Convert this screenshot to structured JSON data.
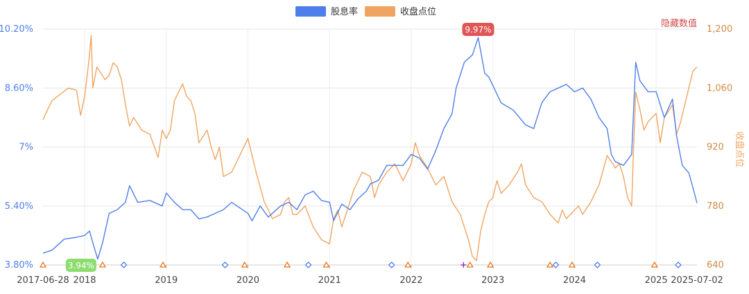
{
  "chart_data": {
    "type": "line",
    "legend": {
      "placement": "top-center",
      "items": [
        {
          "name": "股息率",
          "color": "#4e7ee9"
        },
        {
          "name": "收盘点位",
          "color": "#f0a461"
        }
      ]
    },
    "y_left": {
      "ticks": [
        "3.80%",
        "5.40%",
        "7%",
        "8.60%",
        "10.20%"
      ],
      "range": [
        3.8,
        10.2
      ],
      "color": "#4e7ee9"
    },
    "y_right": {
      "ticks": [
        "640",
        "780",
        "920",
        "1,060",
        "1,200"
      ],
      "range": [
        640,
        1200
      ],
      "color": "#f0a461",
      "label": "收盘点位",
      "hidden_label": "隐藏数值",
      "hidden_label_color": "#d24b4b"
    },
    "x_axis": {
      "start_label": "2017-06-28",
      "end_label": "2025-07-02",
      "year_labels": [
        "2018",
        "2019",
        "2020",
        "2021",
        "2022",
        "2023",
        "2024",
        "2025"
      ]
    },
    "grid": true,
    "annotations": {
      "max_label": "9.97%",
      "max_color": "#e05555",
      "min_label": "3.94%",
      "min_color": "#8ddc6e"
    },
    "series": [
      {
        "name": "股息率",
        "color": "#4e7ee9",
        "points": [
          [
            2017.49,
            4.12
          ],
          [
            2017.6,
            4.2
          ],
          [
            2017.75,
            4.5
          ],
          [
            2017.9,
            4.55
          ],
          [
            2018.0,
            4.6
          ],
          [
            2018.06,
            4.72
          ],
          [
            2018.1,
            4.4
          ],
          [
            2018.16,
            3.96
          ],
          [
            2018.22,
            4.4
          ],
          [
            2018.3,
            5.2
          ],
          [
            2018.4,
            5.3
          ],
          [
            2018.5,
            5.5
          ],
          [
            2018.55,
            5.95
          ],
          [
            2018.65,
            5.5
          ],
          [
            2018.8,
            5.55
          ],
          [
            2018.95,
            5.4
          ],
          [
            2019.0,
            5.75
          ],
          [
            2019.1,
            5.5
          ],
          [
            2019.2,
            5.3
          ],
          [
            2019.3,
            5.3
          ],
          [
            2019.4,
            5.05
          ],
          [
            2019.5,
            5.1
          ],
          [
            2019.6,
            5.2
          ],
          [
            2019.7,
            5.3
          ],
          [
            2019.8,
            5.5
          ],
          [
            2019.9,
            5.35
          ],
          [
            2020.0,
            5.2
          ],
          [
            2020.05,
            5.0
          ],
          [
            2020.15,
            5.4
          ],
          [
            2020.25,
            5.1
          ],
          [
            2020.4,
            5.4
          ],
          [
            2020.5,
            5.5
          ],
          [
            2020.6,
            5.3
          ],
          [
            2020.7,
            5.7
          ],
          [
            2020.8,
            5.8
          ],
          [
            2020.9,
            5.55
          ],
          [
            2021.0,
            5.5
          ],
          [
            2021.05,
            5.0
          ],
          [
            2021.15,
            5.45
          ],
          [
            2021.25,
            5.3
          ],
          [
            2021.35,
            5.6
          ],
          [
            2021.45,
            5.8
          ],
          [
            2021.5,
            6.0
          ],
          [
            2021.6,
            6.1
          ],
          [
            2021.7,
            6.5
          ],
          [
            2021.8,
            6.5
          ],
          [
            2021.9,
            6.5
          ],
          [
            2022.0,
            6.8
          ],
          [
            2022.1,
            6.7
          ],
          [
            2022.2,
            6.4
          ],
          [
            2022.3,
            6.9
          ],
          [
            2022.4,
            7.5
          ],
          [
            2022.5,
            7.9
          ],
          [
            2022.55,
            8.6
          ],
          [
            2022.65,
            9.3
          ],
          [
            2022.75,
            9.5
          ],
          [
            2022.82,
            9.97
          ],
          [
            2022.9,
            9.0
          ],
          [
            2022.95,
            8.9
          ],
          [
            2023.1,
            8.2
          ],
          [
            2023.25,
            8.0
          ],
          [
            2023.4,
            7.6
          ],
          [
            2023.5,
            7.5
          ],
          [
            2023.6,
            8.2
          ],
          [
            2023.7,
            8.5
          ],
          [
            2023.8,
            8.6
          ],
          [
            2023.9,
            8.7
          ],
          [
            2024.0,
            8.5
          ],
          [
            2024.1,
            8.6
          ],
          [
            2024.2,
            8.3
          ],
          [
            2024.3,
            7.8
          ],
          [
            2024.4,
            7.5
          ],
          [
            2024.45,
            6.8
          ],
          [
            2024.5,
            6.6
          ],
          [
            2024.6,
            6.5
          ],
          [
            2024.7,
            6.8
          ],
          [
            2024.75,
            9.3
          ],
          [
            2024.8,
            8.8
          ],
          [
            2024.9,
            8.5
          ],
          [
            2025.0,
            8.5
          ],
          [
            2025.1,
            7.8
          ],
          [
            2025.2,
            8.3
          ],
          [
            2025.25,
            7.3
          ],
          [
            2025.32,
            6.5
          ],
          [
            2025.4,
            6.3
          ],
          [
            2025.45,
            5.9
          ],
          [
            2025.5,
            5.48
          ]
        ]
      },
      {
        "name": "收盘点位",
        "color": "#f0a461",
        "points": [
          [
            2017.49,
            985
          ],
          [
            2017.55,
            1010
          ],
          [
            2017.6,
            1030
          ],
          [
            2017.7,
            1045
          ],
          [
            2017.8,
            1060
          ],
          [
            2017.9,
            1055
          ],
          [
            2017.95,
            995
          ],
          [
            2018.0,
            1040
          ],
          [
            2018.05,
            1120
          ],
          [
            2018.08,
            1185
          ],
          [
            2018.1,
            1060
          ],
          [
            2018.15,
            1110
          ],
          [
            2018.25,
            1080
          ],
          [
            2018.3,
            1090
          ],
          [
            2018.35,
            1120
          ],
          [
            2018.4,
            1110
          ],
          [
            2018.45,
            1080
          ],
          [
            2018.5,
            1020
          ],
          [
            2018.55,
            970
          ],
          [
            2018.6,
            990
          ],
          [
            2018.7,
            960
          ],
          [
            2018.8,
            950
          ],
          [
            2018.9,
            895
          ],
          [
            2018.95,
            960
          ],
          [
            2019.0,
            940
          ],
          [
            2019.05,
            960
          ],
          [
            2019.1,
            1030
          ],
          [
            2019.15,
            1050
          ],
          [
            2019.2,
            1070
          ],
          [
            2019.25,
            1040
          ],
          [
            2019.3,
            1030
          ],
          [
            2019.35,
            1000
          ],
          [
            2019.4,
            930
          ],
          [
            2019.5,
            960
          ],
          [
            2019.55,
            920
          ],
          [
            2019.6,
            890
          ],
          [
            2019.65,
            920
          ],
          [
            2019.7,
            850
          ],
          [
            2019.8,
            860
          ],
          [
            2019.9,
            900
          ],
          [
            2020.0,
            940
          ],
          [
            2020.05,
            900
          ],
          [
            2020.1,
            860
          ],
          [
            2020.2,
            790
          ],
          [
            2020.3,
            750
          ],
          [
            2020.4,
            760
          ],
          [
            2020.45,
            790
          ],
          [
            2020.5,
            800
          ],
          [
            2020.55,
            760
          ],
          [
            2020.6,
            760
          ],
          [
            2020.7,
            780
          ],
          [
            2020.8,
            730
          ],
          [
            2020.9,
            700
          ],
          [
            2021.0,
            690
          ],
          [
            2021.05,
            750
          ],
          [
            2021.1,
            770
          ],
          [
            2021.15,
            730
          ],
          [
            2021.2,
            760
          ],
          [
            2021.3,
            820
          ],
          [
            2021.4,
            860
          ],
          [
            2021.5,
            850
          ],
          [
            2021.55,
            800
          ],
          [
            2021.6,
            830
          ],
          [
            2021.7,
            860
          ],
          [
            2021.8,
            880
          ],
          [
            2021.9,
            840
          ],
          [
            2022.0,
            880
          ],
          [
            2022.05,
            930
          ],
          [
            2022.1,
            900
          ],
          [
            2022.2,
            870
          ],
          [
            2022.3,
            830
          ],
          [
            2022.4,
            850
          ],
          [
            2022.5,
            790
          ],
          [
            2022.6,
            760
          ],
          [
            2022.7,
            700
          ],
          [
            2022.75,
            660
          ],
          [
            2022.8,
            650
          ],
          [
            2022.85,
            720
          ],
          [
            2022.9,
            760
          ],
          [
            2022.95,
            790
          ],
          [
            2023.0,
            800
          ],
          [
            2023.05,
            840
          ],
          [
            2023.1,
            810
          ],
          [
            2023.2,
            830
          ],
          [
            2023.3,
            860
          ],
          [
            2023.35,
            880
          ],
          [
            2023.4,
            830
          ],
          [
            2023.5,
            800
          ],
          [
            2023.6,
            790
          ],
          [
            2023.7,
            760
          ],
          [
            2023.8,
            740
          ],
          [
            2023.85,
            770
          ],
          [
            2023.9,
            750
          ],
          [
            2024.0,
            770
          ],
          [
            2024.05,
            780
          ],
          [
            2024.1,
            760
          ],
          [
            2024.2,
            790
          ],
          [
            2024.3,
            830
          ],
          [
            2024.4,
            900
          ],
          [
            2024.5,
            870
          ],
          [
            2024.55,
            880
          ],
          [
            2024.6,
            850
          ],
          [
            2024.65,
            800
          ],
          [
            2024.7,
            780
          ],
          [
            2024.72,
            900
          ],
          [
            2024.75,
            1050
          ],
          [
            2024.8,
            1010
          ],
          [
            2024.85,
            960
          ],
          [
            2024.9,
            980
          ],
          [
            2025.0,
            1000
          ],
          [
            2025.05,
            930
          ],
          [
            2025.1,
            990
          ],
          [
            2025.2,
            1020
          ],
          [
            2025.25,
            950
          ],
          [
            2025.3,
            980
          ],
          [
            2025.35,
            1020
          ],
          [
            2025.4,
            1060
          ],
          [
            2025.45,
            1100
          ],
          [
            2025.5,
            1110
          ]
        ]
      }
    ],
    "markers": [
      {
        "x": 2017.49,
        "shape": "triangle",
        "color": "#e8761a"
      },
      {
        "x": 2018.22,
        "shape": "triangle",
        "color": "#e8761a"
      },
      {
        "x": 2018.48,
        "shape": "diamond",
        "color": "#4e7ee9"
      },
      {
        "x": 2018.96,
        "shape": "triangle",
        "color": "#e8761a"
      },
      {
        "x": 2019.72,
        "shape": "diamond",
        "color": "#4e7ee9"
      },
      {
        "x": 2019.96,
        "shape": "triangle",
        "color": "#e8761a"
      },
      {
        "x": 2020.48,
        "shape": "triangle",
        "color": "#e8761a"
      },
      {
        "x": 2020.74,
        "shape": "diamond",
        "color": "#4e7ee9"
      },
      {
        "x": 2020.96,
        "shape": "triangle",
        "color": "#e8761a"
      },
      {
        "x": 2021.76,
        "shape": "diamond",
        "color": "#4e7ee9"
      },
      {
        "x": 2021.96,
        "shape": "triangle",
        "color": "#e8761a"
      },
      {
        "x": 2022.64,
        "shape": "plus",
        "color": "#9b30c9"
      },
      {
        "x": 2022.72,
        "shape": "triangle",
        "color": "#e8761a"
      },
      {
        "x": 2022.97,
        "shape": "triangle",
        "color": "#e8761a"
      },
      {
        "x": 2023.7,
        "shape": "triangle",
        "color": "#e8761a"
      },
      {
        "x": 2023.77,
        "shape": "diamond",
        "color": "#4e7ee9"
      },
      {
        "x": 2023.97,
        "shape": "triangle",
        "color": "#e8761a"
      },
      {
        "x": 2024.28,
        "shape": "diamond",
        "color": "#4e7ee9"
      },
      {
        "x": 2024.98,
        "shape": "triangle",
        "color": "#e8761a"
      },
      {
        "x": 2025.27,
        "shape": "diamond",
        "color": "#4e7ee9"
      }
    ]
  }
}
